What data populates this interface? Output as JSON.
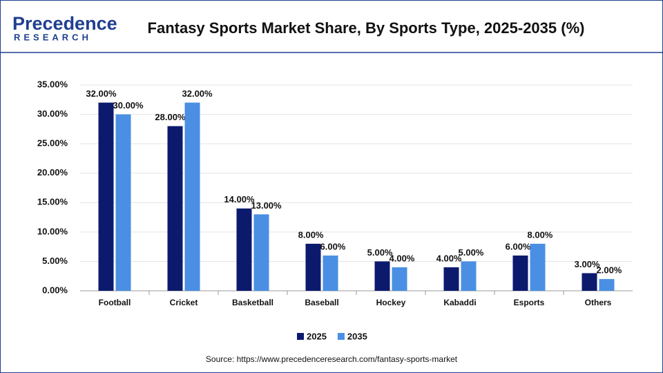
{
  "logo": {
    "name": "Precedence",
    "sub": "RESEARCH"
  },
  "chart_data": {
    "type": "bar",
    "title": "Fantasy Sports Market Share, By Sports Type, 2025-2035 (%)",
    "source": "Source: https://www.precedenceresearch.com/fantasy-sports-market",
    "categories": [
      "Football",
      "Cricket",
      "Basketball",
      "Baseball",
      "Hockey",
      "Kabaddi",
      "Esports",
      "Others"
    ],
    "series": [
      {
        "name": "2025",
        "color": "#0c1a6e",
        "values": [
          32,
          28,
          14,
          8,
          5,
          4,
          6,
          3
        ],
        "value_labels": [
          "32.00%",
          "28.00%",
          "14.00%",
          "8.00%",
          "5.00%",
          "4.00%",
          "6.00%",
          "3.00%"
        ]
      },
      {
        "name": "2035",
        "color": "#4a8fe3",
        "values": [
          30,
          32,
          13,
          6,
          4,
          5,
          8,
          2
        ],
        "value_labels": [
          "30.00%",
          "32.00%",
          "13.00%",
          "6.00%",
          "4.00%",
          "5.00%",
          "8.00%",
          "2.00%"
        ]
      }
    ],
    "ylim": [
      0,
      35
    ],
    "yticks": [
      {
        "value": 0,
        "label": "0.00%"
      },
      {
        "value": 5,
        "label": "5.00%"
      },
      {
        "value": 10,
        "label": "10.00%"
      },
      {
        "value": 15,
        "label": "15.00%"
      },
      {
        "value": 20,
        "label": "20.00%"
      },
      {
        "value": 25,
        "label": "25.00%"
      },
      {
        "value": 30,
        "label": "30.00%"
      },
      {
        "value": 35,
        "label": "35.00%"
      }
    ],
    "grid": true,
    "legend": "bottom"
  }
}
